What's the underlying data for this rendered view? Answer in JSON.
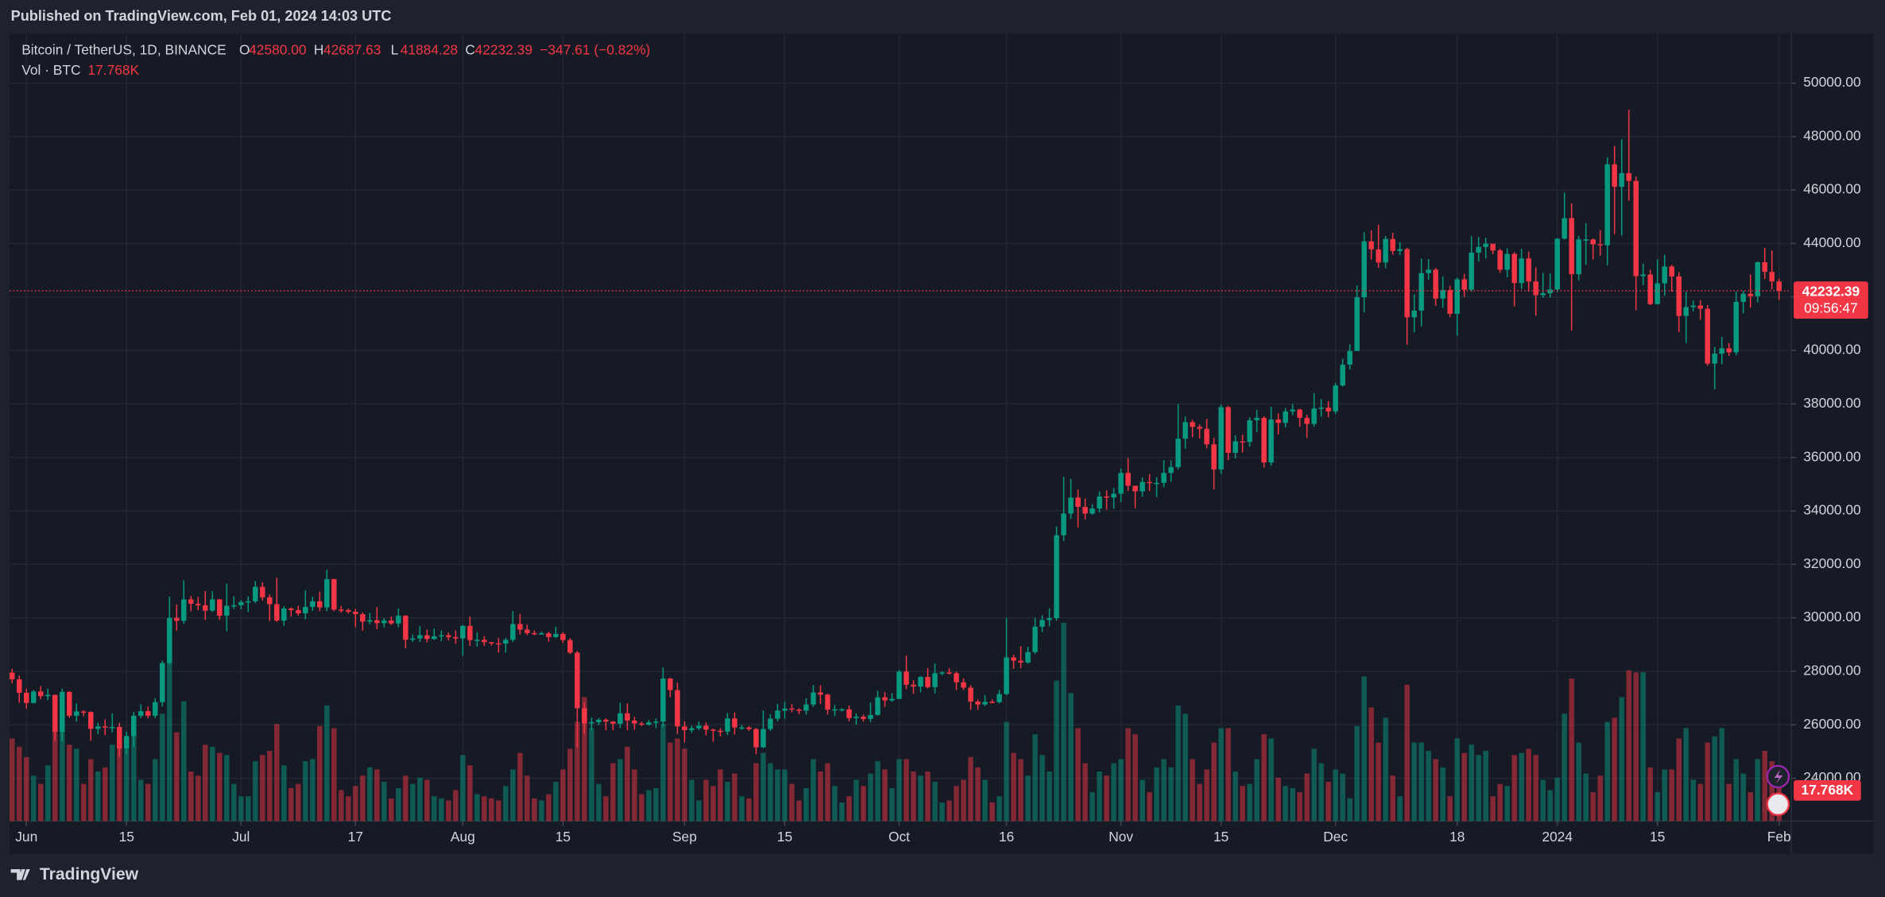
{
  "chart_data": {
    "type": "candlestick",
    "published": "Published on TradingView.com, Feb 01, 2024 14:03 UTC",
    "title": "Bitcoin / TetherUS, 1D, BINANCE",
    "ohlc_legend": [
      {
        "key": "O",
        "value": "42580.00"
      },
      {
        "key": "H",
        "value": "42687.63"
      },
      {
        "key": "L",
        "value": "41884.28"
      },
      {
        "key": "C",
        "value": "42232.39"
      }
    ],
    "change": "−347.61 (−0.82%)",
    "last_price_label": "42232.39",
    "countdown": "09:56:47",
    "brand": "TradingView",
    "up_color": "#089981",
    "down_color": "#f23645",
    "grid": true,
    "xlim": [
      -0.35,
      248.7
    ],
    "ylim": [
      22400,
      51840
    ],
    "xticks": [
      {
        "value": 2,
        "label": "Jun"
      },
      {
        "value": 16,
        "label": "15"
      },
      {
        "value": 32,
        "label": "Jul"
      },
      {
        "value": 48,
        "label": "17"
      },
      {
        "value": 63,
        "label": "Aug"
      },
      {
        "value": 77,
        "label": "15"
      },
      {
        "value": 94,
        "label": "Sep"
      },
      {
        "value": 108,
        "label": "15"
      },
      {
        "value": 124,
        "label": "Oct"
      },
      {
        "value": 139,
        "label": "16"
      },
      {
        "value": 155,
        "label": "Nov"
      },
      {
        "value": 169,
        "label": "15"
      },
      {
        "value": 185,
        "label": "Dec"
      },
      {
        "value": 202,
        "label": "18"
      },
      {
        "value": 216,
        "label": "2024"
      },
      {
        "value": 230,
        "label": "15"
      },
      {
        "value": 247,
        "label": "Feb"
      }
    ],
    "yticks": [
      {
        "value": 24000,
        "label": "24000.00"
      },
      {
        "value": 26000,
        "label": "26000.00"
      },
      {
        "value": 28000,
        "label": "28000.00"
      },
      {
        "value": 30000,
        "label": "30000.00"
      },
      {
        "value": 32000,
        "label": "32000.00"
      },
      {
        "value": 34000,
        "label": "34000.00"
      },
      {
        "value": 36000,
        "label": "36000.00"
      },
      {
        "value": 38000,
        "label": "38000.00"
      },
      {
        "value": 40000,
        "label": "40000.00"
      },
      {
        "value": 42000,
        "label": "42000.00"
      },
      {
        "value": 44000,
        "label": "44000.00"
      },
      {
        "value": 46000,
        "label": "46000.00"
      },
      {
        "value": 48000,
        "label": "48000.00"
      },
      {
        "value": 50000,
        "label": "50000.00"
      }
    ],
    "open": [
      27950,
      27700,
      27200,
      26820,
      27250,
      27070,
      27120,
      25740,
      27230,
      26340,
      26500,
      26480,
      25850,
      25940,
      25900,
      25920,
      25120,
      25580,
      26340,
      26510,
      26340,
      26850,
      28310,
      30000,
      29890,
      30690,
      30530,
      30470,
      30270,
      30690,
      30080,
      30450,
      30470,
      30590,
      30620,
      31160,
      30770,
      30510,
      29900,
      30350,
      30290,
      30170,
      30410,
      30620,
      30390,
      31450,
      30310,
      30290,
      30230,
      30140,
      29860,
      29910,
      29800,
      29900,
      29790,
      30080,
      29180,
      29230,
      29350,
      29210,
      29310,
      29350,
      29280,
      29230,
      29700,
      29170,
      29180,
      29090,
      29050,
      29040,
      29180,
      29770,
      29560,
      29430,
      29400,
      29420,
      29280,
      29400,
      29170,
      28700,
      26620,
      26050,
      26100,
      26190,
      26120,
      26040,
      26430,
      26160,
      26050,
      26010,
      26090,
      26120,
      27730,
      27300,
      25940,
      25800,
      25870,
      25970,
      25820,
      25780,
      25750,
      26240,
      25900,
      25900,
      25840,
      25160,
      25840,
      26230,
      26530,
      26610,
      26570,
      26530,
      26760,
      27210,
      27130,
      26570,
      26580,
      26580,
      26250,
      26300,
      26220,
      26370,
      27030,
      26910,
      26970,
      27990,
      27500,
      27430,
      27790,
      27410,
      27930,
      27960,
      27930,
      27590,
      27390,
      26870,
      26760,
      26860,
      26850,
      27150,
      28520,
      28400,
      28330,
      28720,
      29670,
      29920,
      29990,
      33090,
      33900,
      34500,
      34150,
      33900,
      34090,
      34540,
      34500,
      34640,
      35420,
      34940,
      34730,
      35080,
      35040,
      35050,
      35420,
      35640,
      36700,
      37320,
      37140,
      37070,
      36490,
      35550,
      37880,
      36170,
      36600,
      36580,
      37390,
      37480,
      35810,
      37420,
      37290,
      37720,
      37790,
      37480,
      37250,
      37830,
      37860,
      37720,
      38690,
      39470,
      39980,
      41990,
      44080,
      43780,
      43290,
      44170,
      43720,
      43790,
      41240,
      41490,
      42890,
      43020,
      41940,
      42260,
      41370,
      42660,
      42270,
      43660,
      43870,
      43990,
      43740,
      43020,
      43610,
      42520,
      43440,
      42580,
      42070,
      42140,
      42280,
      44180,
      44950,
      42850,
      44150,
      44150,
      43970,
      43930,
      46960,
      46120,
      46630,
      46340,
      42780,
      42840,
      41730,
      42510,
      43140,
      42770,
      41290,
      41620,
      41680,
      41560,
      39510,
      39880,
      40080,
      39930,
      41820,
      42120,
      42030,
      43300,
      42940,
      42580
    ],
    "high": [
      28100,
      27840,
      27350,
      27300,
      27450,
      27350,
      27130,
      27350,
      27260,
      26800,
      26540,
      26500,
      26080,
      26200,
      26430,
      26080,
      25750,
      26480,
      26770,
      26680,
      27000,
      28400,
      30800,
      30500,
      31400,
      30820,
      30780,
      31010,
      30990,
      30700,
      31280,
      30810,
      30660,
      30800,
      31380,
      31330,
      30880,
      31500,
      30440,
      30390,
      30450,
      31030,
      30800,
      30980,
      31800,
      31460,
      30450,
      30350,
      30340,
      30200,
      30190,
      30400,
      29990,
      30050,
      30350,
      30100,
      29380,
      29690,
      29560,
      29600,
      29530,
      29450,
      29530,
      29730,
      30050,
      29450,
      29320,
      29100,
      29250,
      29250,
      30250,
      30150,
      29740,
      29530,
      29480,
      29480,
      29670,
      29460,
      29240,
      28760,
      26830,
      26280,
      26260,
      26240,
      26140,
      26830,
      26800,
      26300,
      26120,
      26180,
      26240,
      28140,
      27760,
      27580,
      26130,
      25970,
      26120,
      26090,
      25860,
      25880,
      26440,
      26460,
      26000,
      25950,
      25880,
      26540,
      26400,
      26780,
      26860,
      26780,
      26620,
      27000,
      27490,
      27480,
      27160,
      26740,
      26630,
      26720,
      26430,
      26390,
      26830,
      27270,
      27230,
      27180,
      28050,
      28590,
      27680,
      27830,
      28120,
      28290,
      28000,
      28120,
      27990,
      27740,
      27480,
      26950,
      27110,
      26950,
      27300,
      30000,
      28620,
      28940,
      28920,
      30000,
      30100,
      30350,
      33420,
      35280,
      35200,
      34800,
      34460,
      34250,
      34730,
      34770,
      34860,
      35580,
      35980,
      34940,
      35250,
      35380,
      35270,
      35900,
      35890,
      38000,
      37530,
      37410,
      37230,
      37440,
      36740,
      37980,
      37930,
      36830,
      36850,
      37500,
      37780,
      37540,
      37900,
      37650,
      37850,
      38000,
      37820,
      37600,
      38400,
      38180,
      38100,
      38790,
      39690,
      40230,
      42430,
      44420,
      44490,
      44700,
      44280,
      44400,
      44050,
      43840,
      42100,
      43440,
      43420,
      43090,
      42770,
      42420,
      42730,
      42860,
      44280,
      44240,
      44220,
      43950,
      43800,
      43820,
      43680,
      43800,
      43690,
      43110,
      42900,
      42890,
      44200,
      45900,
      45500,
      44280,
      44760,
      44190,
      44500,
      47220,
      47650,
      47900,
      49000,
      46500,
      43250,
      43020,
      43400,
      43580,
      43200,
      42930,
      42200,
      41870,
      41880,
      41700,
      40130,
      40500,
      40280,
      42200,
      42230,
      42840,
      43320,
      43840,
      43740,
      42687.63
    ],
    "low": [
      27550,
      26820,
      26600,
      26800,
      26950,
      26920,
      25400,
      25380,
      26260,
      26120,
      26330,
      25400,
      25650,
      25620,
      25720,
      24800,
      24900,
      25170,
      26250,
      26240,
      26250,
      26680,
      28270,
      29520,
      29780,
      30250,
      30290,
      29920,
      30220,
      29930,
      29500,
      30330,
      30320,
      30220,
      30550,
      30650,
      29880,
      29850,
      29700,
      30050,
      30080,
      29950,
      30260,
      30250,
      30250,
      30250,
      30200,
      30160,
      29650,
      29520,
      29760,
      29570,
      29640,
      29730,
      29650,
      28860,
      29100,
      29100,
      29080,
      29170,
      29130,
      29160,
      29030,
      28580,
      28950,
      28920,
      28950,
      28960,
      28700,
      28700,
      29100,
      29380,
      29350,
      29350,
      29370,
      29110,
      29250,
      29060,
      28650,
      25160,
      25670,
      25800,
      25990,
      25800,
      25800,
      25880,
      25800,
      25820,
      25960,
      25970,
      25880,
      25920,
      27030,
      25660,
      25340,
      25700,
      25800,
      25600,
      25370,
      25570,
      25620,
      25640,
      25810,
      25770,
      24900,
      25130,
      25770,
      26130,
      26230,
      26470,
      26400,
      26380,
      26670,
      26780,
      26380,
      26330,
      26500,
      26130,
      26000,
      26120,
      26100,
      26340,
      26670,
      26860,
      26950,
      27330,
      27160,
      27220,
      27360,
      27170,
      27850,
      27880,
      27300,
      27300,
      26560,
      26560,
      26700,
      26810,
      26800,
      27110,
      28100,
      28120,
      28290,
      28650,
      29470,
      29680,
      29900,
      32880,
      33700,
      33380,
      33680,
      33860,
      33940,
      34050,
      34080,
      34320,
      34750,
      34100,
      34530,
      34740,
      34520,
      34880,
      35100,
      35550,
      36320,
      36760,
      36710,
      36340,
      34800,
      35380,
      35900,
      35960,
      36180,
      36400,
      36950,
      35620,
      35690,
      36860,
      37120,
      37580,
      37150,
      36720,
      37150,
      37520,
      37500,
      37620,
      38650,
      39280,
      39980,
      41430,
      43400,
      43090,
      43080,
      43580,
      43570,
      40220,
      40680,
      40900,
      42650,
      41670,
      41600,
      41250,
      40550,
      42000,
      42200,
      43330,
      43440,
      43600,
      42900,
      42740,
      41650,
      42300,
      42200,
      41300,
      41970,
      41970,
      42180,
      44150,
      40750,
      42630,
      43200,
      43400,
      43550,
      43180,
      44350,
      44300,
      45600,
      41500,
      42440,
      41700,
      41720,
      42050,
      42200,
      40680,
      40280,
      41450,
      41150,
      39430,
      38550,
      39480,
      39800,
      39820,
      41390,
      41600,
      41800,
      42680,
      42280,
      41884.28
    ],
    "close": [
      27700,
      27200,
      26820,
      27250,
      27070,
      27120,
      25740,
      27230,
      26340,
      26500,
      26480,
      25850,
      25940,
      25900,
      25920,
      25120,
      25580,
      26340,
      26510,
      26340,
      26850,
      28310,
      30000,
      29890,
      30690,
      30530,
      30470,
      30270,
      30690,
      30080,
      30450,
      30470,
      30590,
      30620,
      31160,
      30770,
      30510,
      29900,
      30350,
      30290,
      30170,
      30410,
      30620,
      30390,
      31450,
      30310,
      30290,
      30230,
      30140,
      29860,
      29910,
      29800,
      29900,
      29790,
      30080,
      29180,
      29230,
      29350,
      29210,
      29310,
      29350,
      29280,
      29230,
      29700,
      29170,
      29180,
      29090,
      29050,
      29040,
      29180,
      29770,
      29560,
      29430,
      29400,
      29420,
      29280,
      29400,
      29170,
      28700,
      26620,
      26050,
      26100,
      26190,
      26120,
      26040,
      26430,
      26160,
      26050,
      26010,
      26090,
      26120,
      27730,
      27300,
      25940,
      25800,
      25870,
      25970,
      25820,
      25780,
      25750,
      26240,
      25900,
      25900,
      25840,
      25160,
      25840,
      26230,
      26530,
      26610,
      26570,
      26530,
      26760,
      27210,
      27130,
      26570,
      26580,
      26580,
      26250,
      26300,
      26220,
      26370,
      27030,
      26910,
      26970,
      27990,
      27500,
      27430,
      27790,
      27410,
      27930,
      27960,
      27930,
      27590,
      27390,
      26870,
      26760,
      26860,
      26850,
      27150,
      28520,
      28400,
      28330,
      28720,
      29670,
      29920,
      29990,
      33090,
      33900,
      34500,
      34150,
      33900,
      34090,
      34540,
      34500,
      34640,
      35420,
      34940,
      34730,
      35080,
      35040,
      35050,
      35420,
      35640,
      36700,
      37320,
      37140,
      37070,
      36490,
      35550,
      37880,
      36170,
      36600,
      36580,
      37390,
      37480,
      35810,
      37420,
      37290,
      37720,
      37790,
      37480,
      37250,
      37830,
      37860,
      37720,
      38690,
      39470,
      39980,
      41990,
      44080,
      43780,
      43290,
      44170,
      43720,
      43790,
      41240,
      41490,
      42890,
      43020,
      41940,
      42260,
      41370,
      42660,
      42270,
      43660,
      43870,
      43990,
      43740,
      43020,
      43610,
      42520,
      43440,
      42580,
      42070,
      42140,
      42280,
      44180,
      44950,
      42850,
      44150,
      44150,
      43970,
      43930,
      46960,
      46120,
      46630,
      46340,
      42780,
      42840,
      41730,
      42510,
      43140,
      42770,
      41290,
      41620,
      41680,
      41560,
      39510,
      39880,
      40080,
      39930,
      41820,
      42120,
      42030,
      43300,
      42940,
      42580,
      42232.39
    ],
    "volume": {
      "name": "Vol · BTC",
      "value_label": "17.768K",
      "values": [
        40,
        36,
        31,
        22,
        18,
        27,
        46,
        50,
        37,
        35,
        18,
        30,
        24,
        26,
        37,
        42,
        36,
        42,
        20,
        18,
        30,
        52,
        78,
        43,
        58,
        24,
        22,
        37,
        36,
        33,
        32,
        18,
        12,
        12,
        29,
        32,
        34,
        47,
        27,
        16,
        18,
        29,
        30,
        46,
        56,
        45,
        15,
        12,
        17,
        22,
        26,
        25,
        19,
        11,
        16,
        22,
        18,
        21,
        20,
        12,
        11,
        10,
        15,
        32,
        27,
        13,
        12,
        11,
        10,
        17,
        25,
        33,
        22,
        11,
        10,
        13,
        19,
        25,
        35,
        48,
        60,
        45,
        18,
        12,
        28,
        30,
        36,
        25,
        13,
        15,
        16,
        47,
        38,
        40,
        35,
        20,
        10,
        20,
        17,
        25,
        19,
        23,
        12,
        11,
        28,
        33,
        28,
        25,
        25,
        18,
        10,
        16,
        30,
        24,
        28,
        17,
        9,
        12,
        20,
        17,
        23,
        29,
        25,
        16,
        30,
        30,
        24,
        22,
        24,
        19,
        9,
        10,
        17,
        20,
        31,
        26,
        20,
        9,
        12,
        48,
        33,
        30,
        22,
        42,
        32,
        24,
        68,
        96,
        62,
        45,
        28,
        14,
        24,
        22,
        28,
        30,
        45,
        42,
        20,
        14,
        26,
        30,
        26,
        56,
        52,
        30,
        18,
        25,
        38,
        45,
        45,
        24,
        17,
        18,
        30,
        42,
        40,
        21,
        17,
        16,
        14,
        23,
        35,
        28,
        19,
        25,
        23,
        11,
        46,
        70,
        55,
        38,
        50,
        22,
        12,
        66,
        38,
        38,
        34,
        30,
        26,
        12,
        40,
        33,
        37,
        32,
        34,
        12,
        18,
        17,
        32,
        33,
        35,
        32,
        20,
        15,
        21,
        52,
        69,
        38,
        23,
        14,
        22,
        48,
        50,
        60,
        73,
        72,
        72,
        26,
        14,
        25,
        25,
        40,
        45,
        20,
        18,
        38,
        41,
        45,
        18,
        30,
        23,
        14,
        30,
        34,
        29,
        17.768
      ]
    }
  }
}
